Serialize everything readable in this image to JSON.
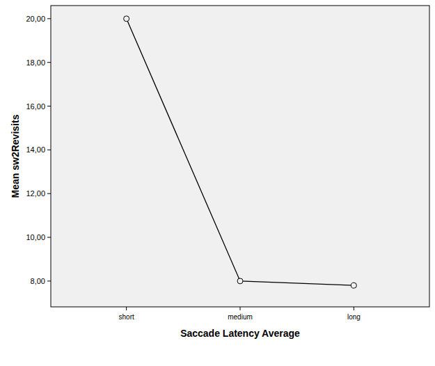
{
  "chart_data": {
    "type": "line",
    "x_label": "Saccade Latency Average",
    "y_label": "Mean sw2Revisits",
    "categories": [
      "short",
      "medium",
      "long"
    ],
    "values": [
      20,
      8.0,
      7.8
    ],
    "color": "#000000",
    "marker": "circle",
    "ylim": [
      6.82,
      20.6
    ],
    "yticks": [
      {
        "value": 8,
        "label": "8,00"
      },
      {
        "value": 10,
        "label": "10,00"
      },
      {
        "value": 12,
        "label": "12,00"
      },
      {
        "value": 14,
        "label": "14,00"
      },
      {
        "value": 16,
        "label": "16,00"
      },
      {
        "value": 18,
        "label": "18,00"
      },
      {
        "value": 20,
        "label": "20,00"
      }
    ]
  }
}
